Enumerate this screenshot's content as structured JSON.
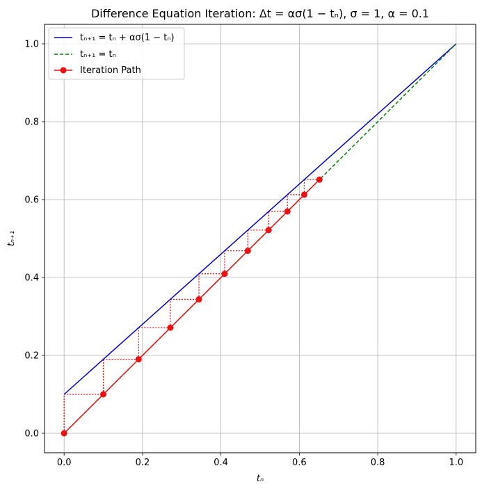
{
  "chart_data": {
    "type": "line",
    "title": "Difference Equation Iteration: Δt = ασ(1 − tₙ), σ = 1, α = 0.1",
    "xlabel": "tₙ",
    "ylabel": "tₙ₊₁",
    "xlim": [
      -0.05,
      1.05
    ],
    "ylim": [
      -0.05,
      1.05
    ],
    "grid": true,
    "legend_position": "top-left",
    "x_ticks": [
      0.0,
      0.2,
      0.4,
      0.6,
      0.8,
      1.0
    ],
    "y_ticks": [
      0.0,
      0.2,
      0.4,
      0.6,
      0.8,
      1.0
    ],
    "x_tick_labels": [
      "0.0",
      "0.2",
      "0.4",
      "0.6",
      "0.8",
      "1.0"
    ],
    "y_tick_labels": [
      "0.0",
      "0.2",
      "0.4",
      "0.6",
      "0.8",
      "1.0"
    ],
    "series": [
      {
        "name": "tₙ₊₁ = tₙ + ασ(1 − tₙ)",
        "style": "solid",
        "color": "#0000cc",
        "x": [
          0.0,
          1.0
        ],
        "y": [
          0.1,
          1.0
        ]
      },
      {
        "name": "tₙ₊₁ = tₙ",
        "style": "dashed",
        "color": "#008000",
        "x": [
          0.0,
          1.0
        ],
        "y": [
          0.0,
          1.0
        ]
      },
      {
        "name": "Iteration Path",
        "style": "solid-markers",
        "color": "#ff0000",
        "x": [
          0.0,
          0.1,
          0.19,
          0.271,
          0.3439,
          0.40951,
          0.468559,
          0.5217031,
          0.56953279,
          0.61257951
        ],
        "y": [
          0.0,
          0.1,
          0.19,
          0.271,
          0.3439,
          0.40951,
          0.468559,
          0.5217031,
          0.56953279,
          0.61257951
        ]
      }
    ],
    "extra_point": {
      "x": 0.65132156,
      "y": 0.65132156
    }
  }
}
